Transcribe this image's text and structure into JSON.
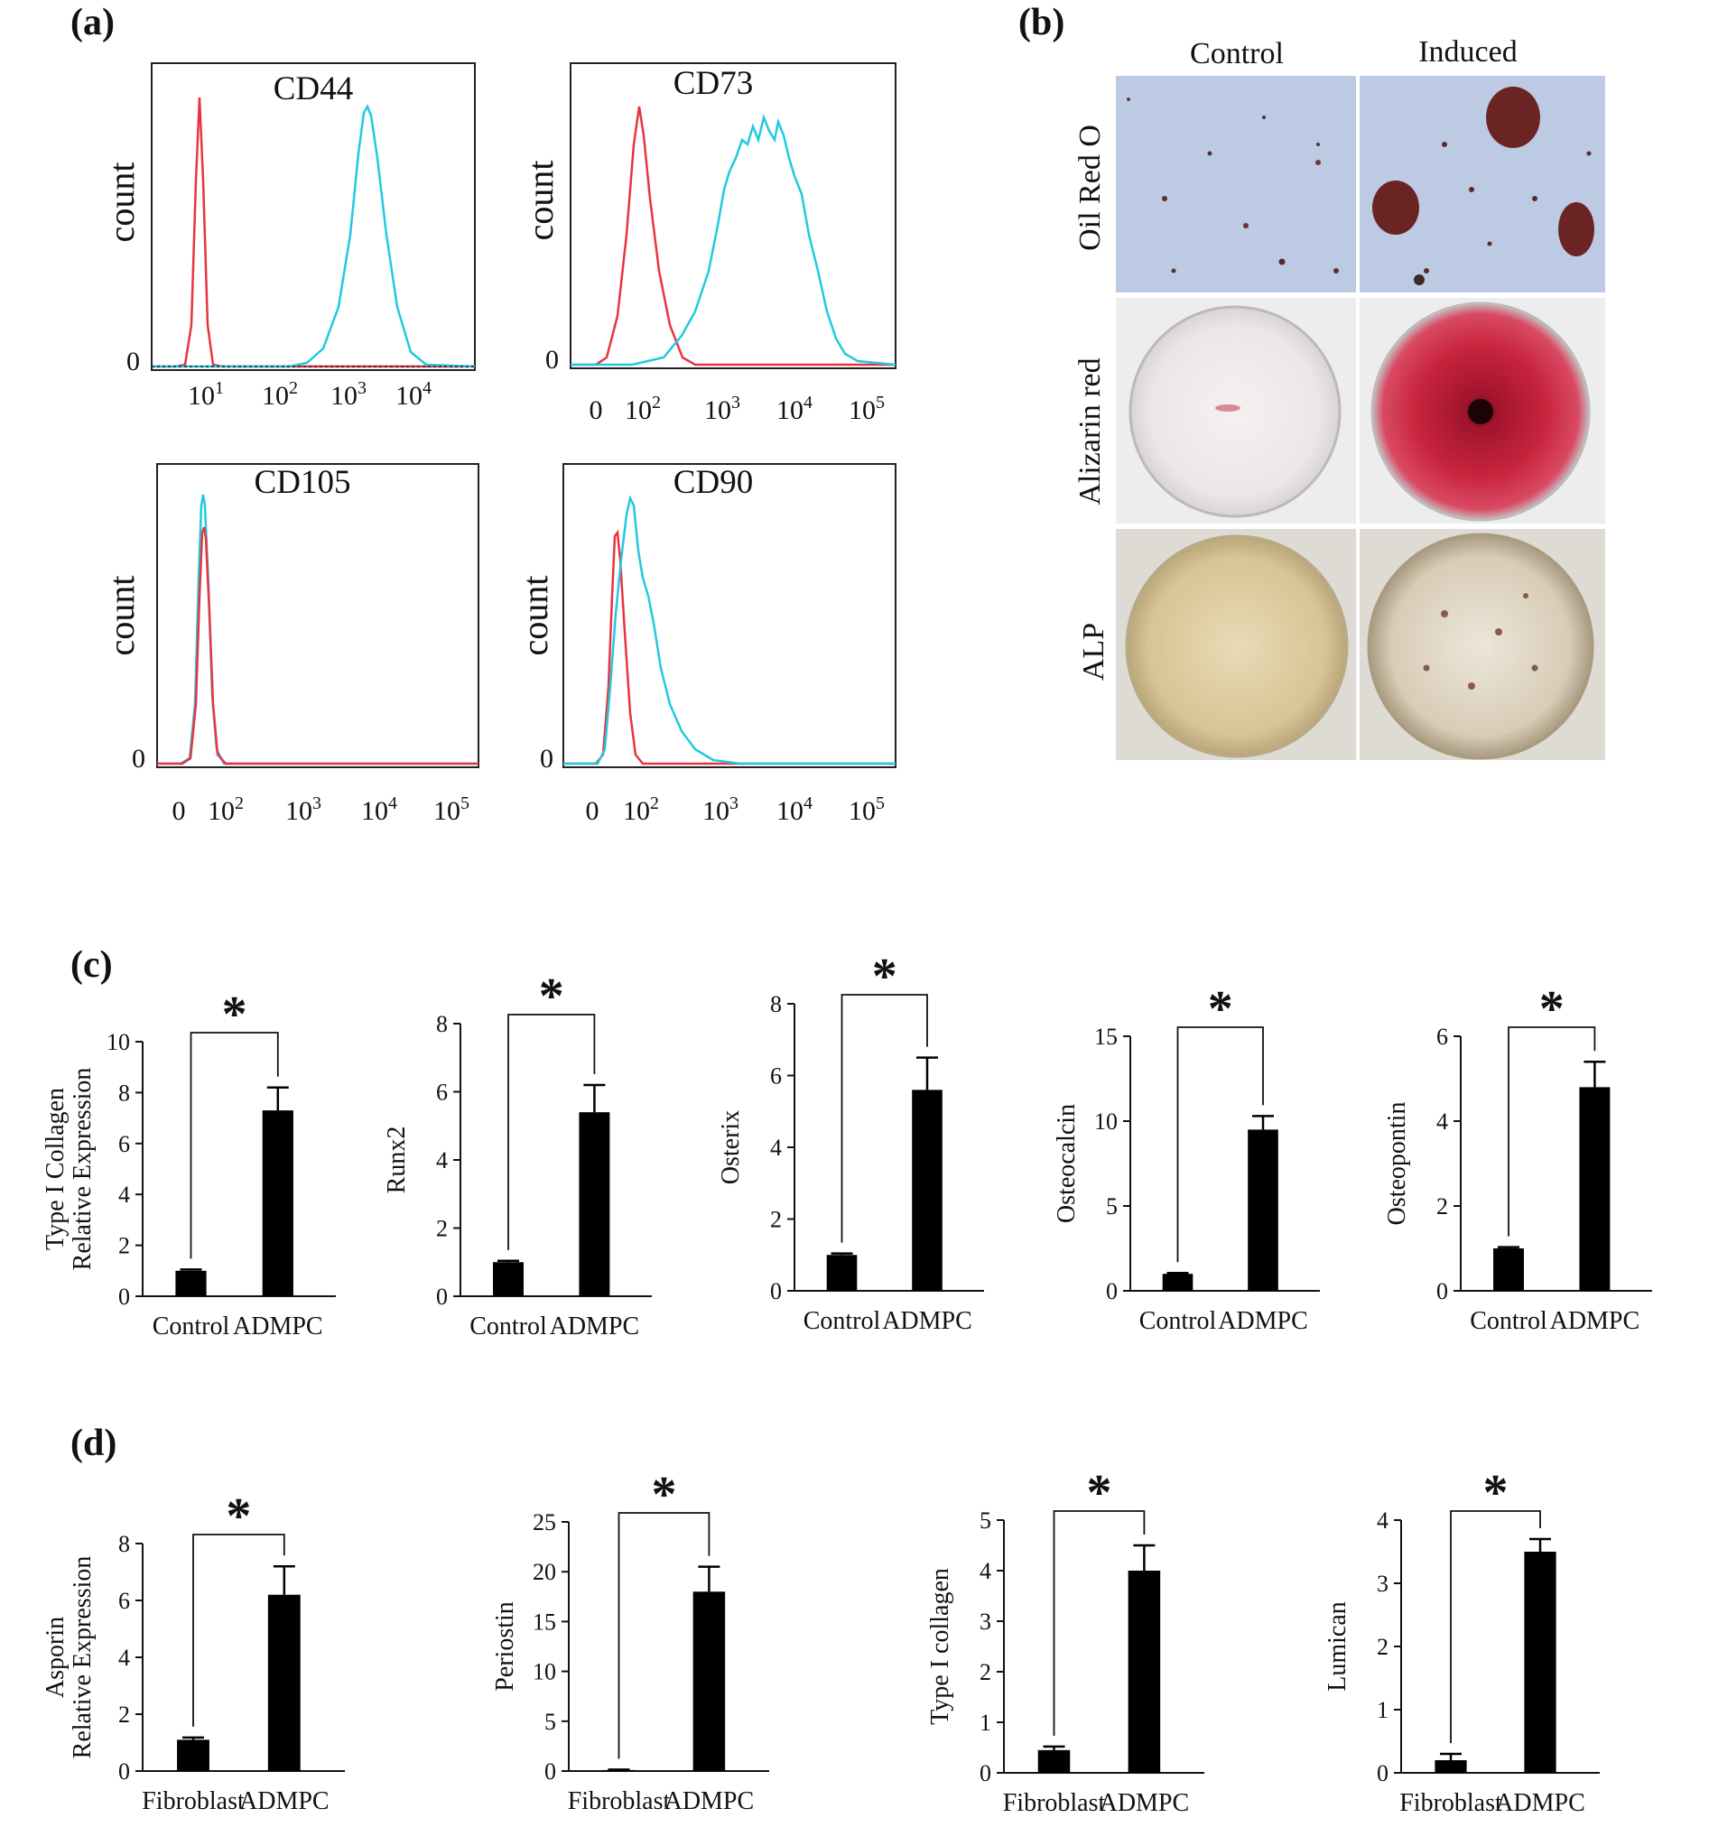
{
  "panels": {
    "a": "(a)",
    "b": "(b)",
    "c": "(c)",
    "d": "(d)"
  },
  "flow": [
    {
      "title": "CD44",
      "ylabel": "count",
      "zero": "0",
      "ticks": [
        {
          "base": "10",
          "exp": "1"
        },
        {
          "base": "10",
          "exp": "2"
        },
        {
          "base": "10",
          "exp": "3"
        },
        {
          "base": "10",
          "exp": "4"
        }
      ],
      "series": [
        {
          "name": "",
          "color": "#e8343f"
        },
        {
          "name": "",
          "color": "#22c9e0"
        }
      ]
    },
    {
      "title": "CD73",
      "ylabel": "count",
      "zero": "0",
      "ticks": [
        {
          "base": "0",
          "exp": ""
        },
        {
          "base": "10",
          "exp": "2"
        },
        {
          "base": "10",
          "exp": "3"
        },
        {
          "base": "10",
          "exp": "4"
        },
        {
          "base": "10",
          "exp": "5"
        }
      ],
      "series": [
        {
          "name": "",
          "color": "#e8343f"
        },
        {
          "name": "",
          "color": "#22c9e0"
        }
      ]
    },
    {
      "title": "CD105",
      "ylabel": "count",
      "zero": "0",
      "ticks": [
        {
          "base": "0",
          "exp": ""
        },
        {
          "base": "10",
          "exp": "2"
        },
        {
          "base": "10",
          "exp": "3"
        },
        {
          "base": "10",
          "exp": "4"
        },
        {
          "base": "10",
          "exp": "5"
        }
      ],
      "series": [
        {
          "name": "",
          "color": "#e8343f"
        },
        {
          "name": "",
          "color": "#22c9e0"
        }
      ]
    },
    {
      "title": "CD90",
      "ylabel": "count",
      "zero": "0",
      "ticks": [
        {
          "base": "0",
          "exp": ""
        },
        {
          "base": "10",
          "exp": "2"
        },
        {
          "base": "10",
          "exp": "3"
        },
        {
          "base": "10",
          "exp": "4"
        },
        {
          "base": "10",
          "exp": "5"
        }
      ],
      "series": [
        {
          "name": "",
          "color": "#e8343f"
        },
        {
          "name": "",
          "color": "#22c9e0"
        }
      ]
    }
  ],
  "stains": {
    "columns": [
      "Control",
      "Induced"
    ],
    "rows": [
      "Oil Red O",
      "Alizarin red",
      "ALP"
    ]
  },
  "chart_data": [
    {
      "type": "bar",
      "panel": "c",
      "ylabel": "Type I  Collagen",
      "ylabel2": "Relative Expression",
      "categories": [
        "Control",
        "ADMPC"
      ],
      "values": [
        1.0,
        7.3
      ],
      "errors": [
        0.05,
        0.9
      ],
      "ylim": [
        0,
        10
      ],
      "yticks": [
        "0",
        "2",
        "4",
        "6",
        "8",
        "10"
      ],
      "significance": "*"
    },
    {
      "type": "bar",
      "panel": "c",
      "ylabel": "Runx2",
      "ylabel2": "",
      "categories": [
        "Control",
        "ADMPC"
      ],
      "values": [
        1.0,
        5.4
      ],
      "errors": [
        0.04,
        0.8
      ],
      "ylim": [
        0,
        8
      ],
      "yticks": [
        "0",
        "2",
        "4",
        "6",
        "8"
      ],
      "significance": "*"
    },
    {
      "type": "bar",
      "panel": "c",
      "ylabel": "Osterix",
      "ylabel2": "",
      "categories": [
        "Control",
        "ADMPC"
      ],
      "values": [
        1.0,
        5.6
      ],
      "errors": [
        0.04,
        0.9
      ],
      "ylim": [
        0,
        8
      ],
      "yticks": [
        "0",
        "2",
        "4",
        "6",
        "8"
      ],
      "significance": "*"
    },
    {
      "type": "bar",
      "panel": "c",
      "ylabel": "Osteocalcin",
      "ylabel2": "",
      "categories": [
        "Control",
        "ADMPC"
      ],
      "values": [
        1.0,
        9.5
      ],
      "errors": [
        0.05,
        0.8
      ],
      "ylim": [
        0,
        15
      ],
      "yticks": [
        "0",
        "5",
        "10",
        "15"
      ],
      "significance": "*"
    },
    {
      "type": "bar",
      "panel": "c",
      "ylabel": "Osteopontin",
      "ylabel2": "",
      "categories": [
        "Control",
        "ADMPC"
      ],
      "values": [
        1.0,
        4.8
      ],
      "errors": [
        0.03,
        0.6
      ],
      "ylim": [
        0,
        6
      ],
      "yticks": [
        "0",
        "2",
        "4",
        "6"
      ],
      "significance": "*"
    },
    {
      "type": "bar",
      "panel": "d",
      "ylabel": "Asporin",
      "ylabel2": "Relative Expression",
      "categories": [
        "Fibroblast",
        "ADMPC"
      ],
      "values": [
        1.1,
        6.2
      ],
      "errors": [
        0.08,
        1.0
      ],
      "ylim": [
        0,
        8
      ],
      "yticks": [
        "0",
        "2",
        "4",
        "6",
        "8"
      ],
      "significance": "*"
    },
    {
      "type": "bar",
      "panel": "d",
      "ylabel": "Periostin",
      "ylabel2": "",
      "categories": [
        "Fibroblast",
        "ADMPC"
      ],
      "values": [
        0.1,
        18.0
      ],
      "errors": [
        0.05,
        2.5
      ],
      "ylim": [
        0,
        25
      ],
      "yticks": [
        "0",
        "5",
        "10",
        "15",
        "20",
        "25"
      ],
      "significance": "*"
    },
    {
      "type": "bar",
      "panel": "d",
      "ylabel": "Type I collagen",
      "ylabel2": "",
      "categories": [
        "Fibroblast",
        "ADMPC"
      ],
      "values": [
        0.45,
        4.0
      ],
      "errors": [
        0.07,
        0.5
      ],
      "ylim": [
        0,
        5
      ],
      "yticks": [
        "0",
        "1",
        "2",
        "3",
        "4",
        "5"
      ],
      "significance": "*"
    },
    {
      "type": "bar",
      "panel": "d",
      "ylabel": "Lumican",
      "ylabel2": "",
      "categories": [
        "Fibroblast",
        "ADMPC"
      ],
      "values": [
        0.2,
        3.5
      ],
      "errors": [
        0.1,
        0.2
      ],
      "ylim": [
        0,
        4
      ],
      "yticks": [
        "0",
        "1",
        "2",
        "3",
        "4"
      ],
      "significance": "*"
    }
  ]
}
